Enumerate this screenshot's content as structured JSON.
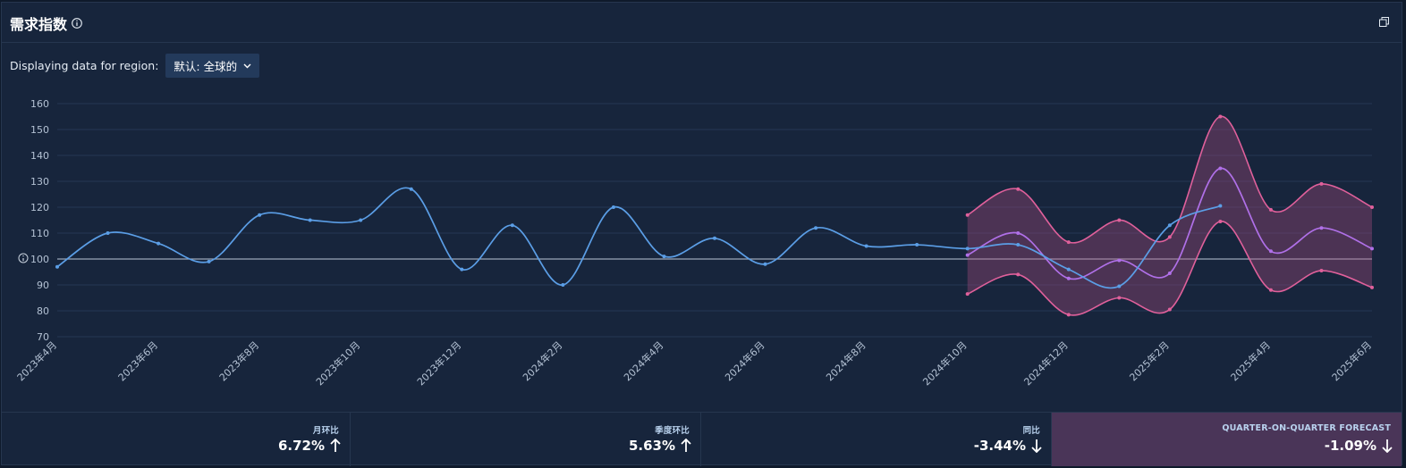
{
  "header": {
    "title": "需求指数"
  },
  "region": {
    "label": "Displaying data for region:",
    "selected": "默认: 全球的"
  },
  "chart_data": {
    "type": "line",
    "ylim": [
      70,
      160
    ],
    "y_ticks": [
      70,
      80,
      90,
      100,
      110,
      120,
      130,
      140,
      150,
      160
    ],
    "baseline": 100,
    "x_labels": [
      "2023年4月",
      "2023年6月",
      "2023年8月",
      "2023年10月",
      "2023年12月",
      "2024年2月",
      "2024年4月",
      "2024年6月",
      "2024年8月",
      "2024年10月",
      "2024年12月",
      "2025年2月",
      "2025年4月",
      "2025年6月"
    ],
    "x_months": [
      "2023-04",
      "2023-05",
      "2023-06",
      "2023-07",
      "2023-08",
      "2023-09",
      "2023-10",
      "2023-11",
      "2023-12",
      "2024-01",
      "2024-02",
      "2024-03",
      "2024-04",
      "2024-05",
      "2024-06",
      "2024-07",
      "2024-08",
      "2024-09",
      "2024-10",
      "2024-11",
      "2024-12",
      "2025-01",
      "2025-02",
      "2025-03",
      "2025-04",
      "2025-05",
      "2025-06"
    ],
    "series": [
      {
        "values": [
          97,
          110,
          106,
          99,
          117,
          115,
          115,
          127,
          96,
          113,
          90,
          120,
          101,
          108,
          98,
          112,
          105,
          105.5,
          104,
          105.5,
          96,
          89.5,
          113,
          120.5,
          null,
          null,
          null
        ]
      },
      {
        "values": [
          null,
          null,
          null,
          null,
          null,
          null,
          null,
          null,
          null,
          null,
          null,
          null,
          null,
          null,
          null,
          null,
          null,
          null,
          101.5,
          110,
          92.5,
          99.5,
          94.5,
          135,
          103,
          112,
          104
        ]
      }
    ],
    "band": {
      "upper": [
        null,
        null,
        null,
        null,
        null,
        null,
        null,
        null,
        null,
        null,
        null,
        null,
        null,
        null,
        null,
        null,
        null,
        null,
        117,
        127,
        106.5,
        115,
        108.5,
        155,
        119,
        129,
        120
      ],
      "lower": [
        null,
        null,
        null,
        null,
        null,
        null,
        null,
        null,
        null,
        null,
        null,
        null,
        null,
        null,
        null,
        null,
        null,
        null,
        86.5,
        94,
        78.5,
        85,
        80.5,
        114.5,
        88,
        95.5,
        89
      ]
    },
    "colors": {
      "actual": "#5b9ee6",
      "forecast": "#b070e8",
      "band_line": "#e0609b",
      "band_fill": "#b04c80"
    }
  },
  "stats": [
    {
      "label": "月环比",
      "value": "6.72%",
      "direction": "up"
    },
    {
      "label": "季度环比",
      "value": "5.63%",
      "direction": "up"
    },
    {
      "label": "同比",
      "value": "-3.44%",
      "direction": "down"
    },
    {
      "label": "QUARTER-ON-QUARTER FORECAST",
      "value": "-1.09%",
      "direction": "down"
    }
  ]
}
